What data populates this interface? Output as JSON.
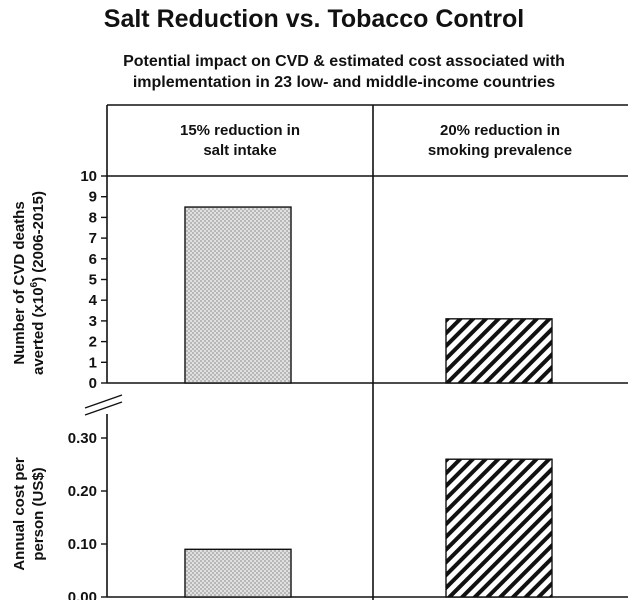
{
  "title": "Salt Reduction vs. Tobacco Control",
  "subtitle_line1": "Potential impact on CVD & estimated cost associated with",
  "subtitle_line2": "implementation in 23 low- and middle-income countries",
  "chart_data": [
    {
      "type": "bar",
      "categories": [
        "15% reduction in salt intake",
        "20% reduction in smoking prevalence"
      ],
      "values": [
        8.5,
        3.1
      ],
      "ylabel": "Number of CVD deaths averted (x10^6) (2006-2015)",
      "ylim": [
        0,
        10
      ],
      "yticks": [
        "0",
        "1",
        "2",
        "3",
        "4",
        "5",
        "6",
        "7",
        "8",
        "9",
        "10"
      ],
      "patterns": [
        "dotted",
        "diagonal-stripes"
      ],
      "grid": false
    },
    {
      "type": "bar",
      "categories": [
        "15% reduction in salt intake",
        "20% reduction in smoking prevalence"
      ],
      "values": [
        0.09,
        0.26
      ],
      "ylabel": "Annual cost per person (US$)",
      "ylim": [
        0,
        0.3
      ],
      "yticks": [
        "0.00",
        "0.10",
        "0.20",
        "0.30"
      ],
      "axis_break": true,
      "patterns": [
        "dotted",
        "diagonal-stripes"
      ],
      "grid": false
    }
  ],
  "headers": {
    "salt_line1": "15% reduction in",
    "salt_line2": "salt intake",
    "smoke_line1": "20% reduction in",
    "smoke_line2": "smoking prevalence"
  },
  "ylabels": {
    "top_line1": "Number of CVD deaths",
    "top_line2_pre": "averted (x10",
    "top_line2_sup": "6",
    "top_line2_post": ") (2006-2015)",
    "bottom_line1": "Annual cost per",
    "bottom_line2": "person (US$)"
  },
  "colors": {
    "axis": "#111111",
    "bar_fill": "#e0e0e0",
    "dot": "#555555",
    "stripe": "#111111"
  }
}
